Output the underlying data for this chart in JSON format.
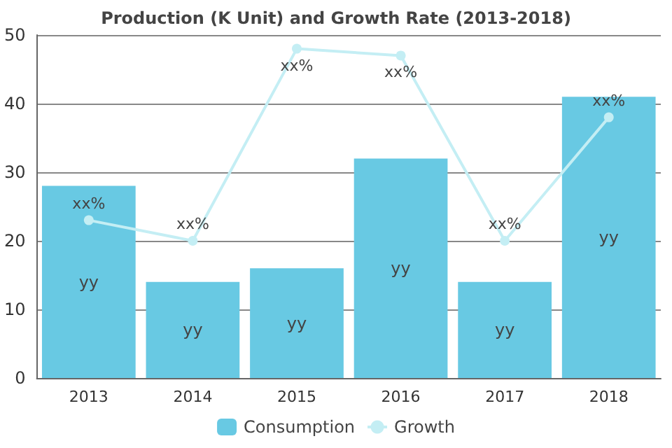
{
  "chart_data": {
    "type": "bar",
    "title": "Production (K Unit) and Growth Rate (2013-2018)",
    "categories": [
      "2013",
      "2014",
      "2015",
      "2016",
      "2017",
      "2018"
    ],
    "series": [
      {
        "name": "Consumption",
        "color": "#68c9e3",
        "values": [
          28,
          14,
          16,
          32,
          14,
          41
        ],
        "value_labels": [
          "yy",
          "yy",
          "yy",
          "yy",
          "yy",
          "yy"
        ]
      },
      {
        "name": "Growth",
        "type": "line",
        "color": "#c4eef4",
        "marker": "circle",
        "values": [
          23,
          20,
          48,
          47,
          20,
          38
        ],
        "value_labels": [
          "xx%",
          "xx%",
          "xx%",
          "xx%",
          "xx%",
          "xx%"
        ]
      }
    ],
    "ylim": [
      0,
      50
    ],
    "yticks": [
      0,
      10,
      20,
      30,
      40,
      50
    ],
    "grid": "y",
    "legend": "bottom"
  }
}
